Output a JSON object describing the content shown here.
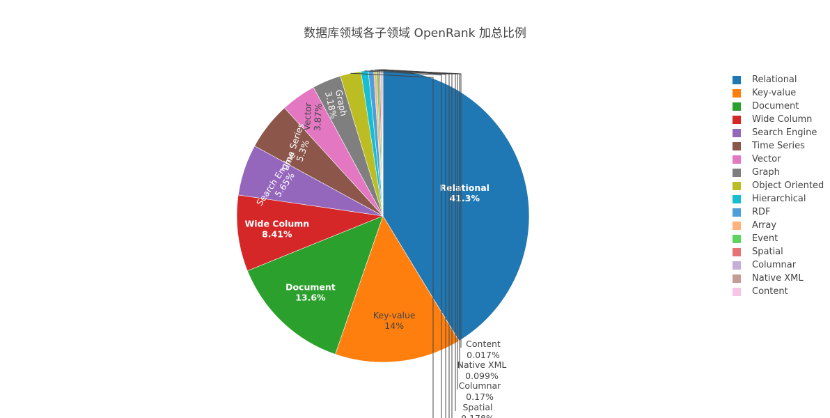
{
  "chart_data": {
    "type": "pie",
    "title": "数据库领域各子领域 OpenRank 加总比例",
    "direction": "clockwise",
    "start": "top",
    "legend_position": "right",
    "slices": [
      {
        "label": "Relational",
        "value": 41.3,
        "text": "41.3%",
        "color": "#1f77b4"
      },
      {
        "label": "Key-value",
        "value": 14.0,
        "text": "14%",
        "color": "#ff7f0e"
      },
      {
        "label": "Document",
        "value": 13.6,
        "text": "13.6%",
        "color": "#2ca02c"
      },
      {
        "label": "Wide Column",
        "value": 8.41,
        "text": "8.41%",
        "color": "#d62728"
      },
      {
        "label": "Search Engine",
        "value": 5.65,
        "text": "5.65%",
        "color": "#9467bd"
      },
      {
        "label": "Time Series",
        "value": 5.3,
        "text": "5.3%",
        "color": "#8c564b"
      },
      {
        "label": "Vector",
        "value": 3.87,
        "text": "3.87%",
        "color": "#e377c2"
      },
      {
        "label": "Graph",
        "value": 3.18,
        "text": "3.18%",
        "color": "#7f7f7f"
      },
      {
        "label": "Object Oriented",
        "value": 2.3,
        "text": "",
        "color": "#bcbd22"
      },
      {
        "label": "Hierarchical",
        "value": 0.8,
        "text": "",
        "color": "#17becf"
      },
      {
        "label": "RDF",
        "value": 0.6,
        "text": "",
        "color": "#4c9fdb"
      },
      {
        "label": "Array",
        "value": 0.3,
        "text": "",
        "color": "#ffb27a"
      },
      {
        "label": "Event",
        "value": 0.25,
        "text": "",
        "color": "#5fd35f"
      },
      {
        "label": "Spatial",
        "value": 0.178,
        "text": "0.178%",
        "color": "#e57373"
      },
      {
        "label": "Columnar",
        "value": 0.17,
        "text": "0.17%",
        "color": "#c5aed9"
      },
      {
        "label": "Native XML",
        "value": 0.099,
        "text": "0.099%",
        "color": "#c49c94"
      },
      {
        "label": "Content",
        "value": 0.017,
        "text": "0.017%",
        "color": "#f7c6e6"
      }
    ]
  }
}
